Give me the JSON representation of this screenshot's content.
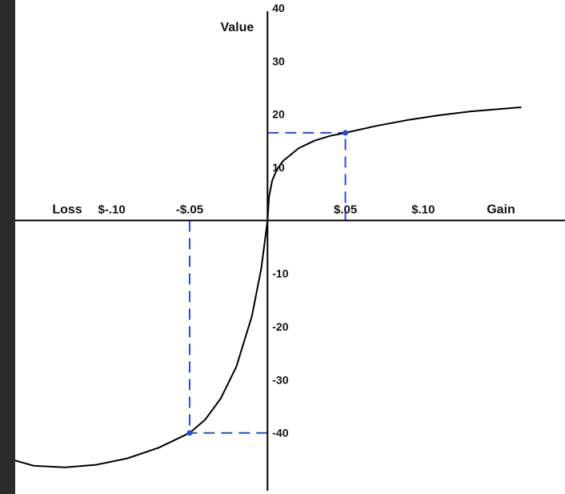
{
  "chart_data": {
    "type": "line",
    "title": "",
    "xlabel_left": "Loss",
    "xlabel_right": "Gain",
    "ylabel": "Value",
    "x_tick_labels": [
      {
        "value": -0.1,
        "label": "$-.10"
      },
      {
        "value": -0.05,
        "label": "-$.05"
      },
      {
        "value": 0.05,
        "label": "$.05"
      },
      {
        "value": 0.1,
        "label": "$.10"
      }
    ],
    "y_tick_labels": [
      {
        "value": 40,
        "label": "40"
      },
      {
        "value": 30,
        "label": "30"
      },
      {
        "value": 20,
        "label": "20"
      },
      {
        "value": 10,
        "label": "10"
      },
      {
        "value": -10,
        "label": "-10"
      },
      {
        "value": -20,
        "label": "-20"
      },
      {
        "value": -30,
        "label": "-30"
      },
      {
        "value": -40,
        "label": "-40"
      }
    ],
    "xlim": [
      -0.162,
      0.191
    ],
    "ylim": [
      -51.5,
      41.5
    ],
    "grid": false,
    "curve": [
      [
        -0.162,
        -45.2
      ],
      [
        -0.15,
        -46.2
      ],
      [
        -0.13,
        -46.5
      ],
      [
        -0.11,
        -46.0
      ],
      [
        -0.09,
        -44.8
      ],
      [
        -0.07,
        -42.8
      ],
      [
        -0.05,
        -40.0
      ],
      [
        -0.04,
        -37.5
      ],
      [
        -0.03,
        -33.5
      ],
      [
        -0.02,
        -27.5
      ],
      [
        -0.01,
        -18.0
      ],
      [
        -0.004,
        -9.0
      ],
      [
        0.0,
        0.0
      ],
      [
        0.001,
        4.5
      ],
      [
        0.003,
        7.5
      ],
      [
        0.006,
        9.6
      ],
      [
        0.01,
        11.2
      ],
      [
        0.02,
        13.6
      ],
      [
        0.03,
        15.0
      ],
      [
        0.04,
        15.9
      ],
      [
        0.05,
        16.5
      ],
      [
        0.07,
        17.8
      ],
      [
        0.09,
        18.9
      ],
      [
        0.11,
        19.8
      ],
      [
        0.13,
        20.5
      ],
      [
        0.15,
        21.0
      ],
      [
        0.163,
        21.3
      ]
    ],
    "highlight_points": [
      {
        "x": 0.05,
        "y": 16.5
      },
      {
        "x": -0.05,
        "y": -40.0
      }
    ],
    "colors": {
      "curve": "#000000",
      "guide": "#1f4fe0",
      "axis": "#000000"
    }
  }
}
